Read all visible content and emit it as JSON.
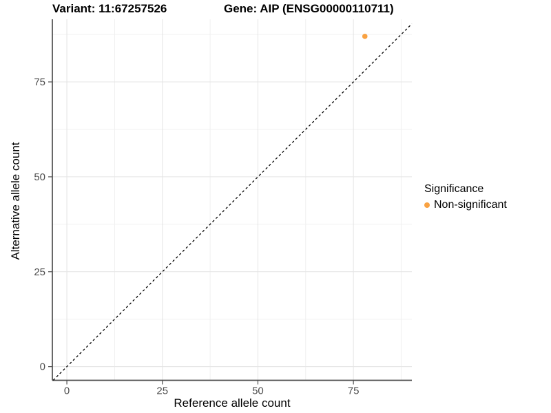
{
  "header": {
    "variant_title": "Variant: 11:67257526",
    "gene_title": "Gene: AIP (ENSG00000110711)"
  },
  "axes": {
    "x_title": "Reference allele count",
    "y_title": "Alternative allele count"
  },
  "legend": {
    "title": "Significance",
    "items": [
      {
        "label": "Non-significant",
        "color": "#F9A242"
      }
    ]
  },
  "chart_data": {
    "type": "scatter",
    "title": "Variant: 11:67257526 | Gene: AIP (ENSG00000110711)",
    "xlabel": "Reference allele count",
    "ylabel": "Alternative allele count",
    "xlim": [
      -3.8,
      90.3
    ],
    "ylim": [
      -3.6,
      91.5
    ],
    "x_ticks": [
      0,
      25,
      50,
      75
    ],
    "y_ticks": [
      0,
      25,
      50,
      75
    ],
    "minor_grid_step": 12.5,
    "grid": "major+minor",
    "legend_position": "right",
    "series": [
      {
        "name": "Non-significant",
        "color": "#F9A242",
        "points": [
          {
            "x": 78,
            "y": 87
          }
        ]
      }
    ],
    "reference_line": {
      "type": "y=x",
      "style": "dashed",
      "color": "#000000"
    }
  },
  "colors": {
    "background": "#ffffff",
    "point_orange": "#F9A242",
    "axis_line": "#4d4d4d",
    "tick_text": "#4d4d4d",
    "grid_major": "#e4e4e4",
    "grid_minor": "#f0f0f0",
    "reference_line": "#000000"
  }
}
